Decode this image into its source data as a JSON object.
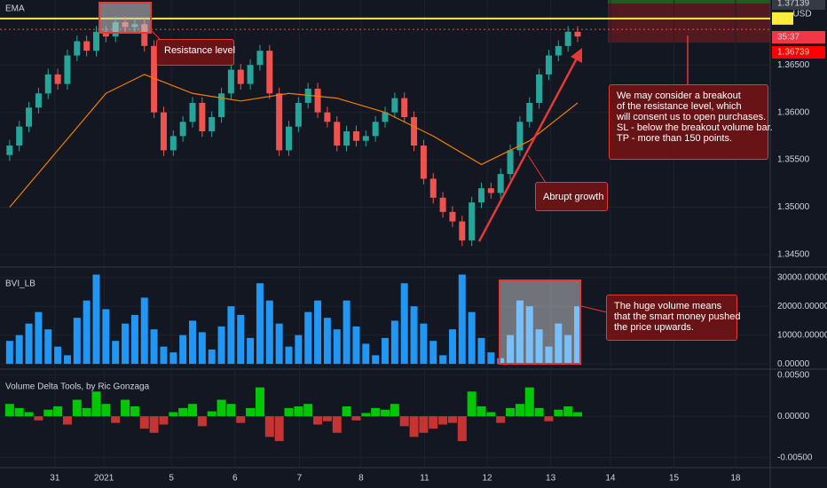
{
  "chart_data": [
    {
      "type": "candlestick",
      "legend": "EMA",
      "currency": "USD",
      "ylim": [
        1.34378,
        1.37185
      ],
      "yticks": [
        {
          "value": 1.345,
          "label": "1.34500"
        },
        {
          "value": 1.35,
          "label": "1.35000"
        },
        {
          "value": 1.355,
          "label": "1.35500"
        },
        {
          "value": 1.36,
          "label": "1.36000"
        },
        {
          "value": 1.365,
          "label": "1.36500"
        }
      ],
      "x": [
        1,
        2,
        3,
        4,
        5,
        6,
        7,
        8,
        9,
        10,
        11,
        12,
        13,
        14,
        15,
        16,
        17,
        18,
        19,
        20,
        21,
        22,
        23,
        24,
        25,
        26,
        27,
        28,
        29,
        30,
        31,
        32,
        33,
        34,
        35,
        36,
        37,
        38,
        39,
        40,
        41,
        42,
        43,
        44,
        45,
        46,
        47,
        48,
        49,
        50,
        51,
        52,
        53,
        54,
        55,
        56,
        57,
        58,
        59,
        60
      ],
      "open": [
        1.3555,
        1.3565,
        1.3585,
        1.3605,
        1.362,
        1.364,
        1.363,
        1.366,
        1.3675,
        1.3665,
        1.3685,
        1.368,
        1.3695,
        1.369,
        1.3693,
        1.367,
        1.36,
        1.356,
        1.3575,
        1.359,
        1.361,
        1.358,
        1.3595,
        1.362,
        1.3645,
        1.363,
        1.365,
        1.3665,
        1.362,
        1.356,
        1.3585,
        1.361,
        1.3625,
        1.36,
        1.359,
        1.3565,
        1.358,
        1.357,
        1.3575,
        1.359,
        1.36,
        1.3615,
        1.3595,
        1.3565,
        1.353,
        1.351,
        1.3495,
        1.3485,
        1.3465,
        1.3505,
        1.352,
        1.3515,
        1.3535,
        1.356,
        1.359,
        1.361,
        1.364,
        1.366,
        1.367,
        1.3685
      ],
      "high": [
        1.3571,
        1.3591,
        1.3611,
        1.3626,
        1.3646,
        1.3646,
        1.3666,
        1.3681,
        1.3681,
        1.3691,
        1.3691,
        1.3701,
        1.3701,
        1.3699,
        1.3699,
        1.3676,
        1.3606,
        1.3581,
        1.3596,
        1.3616,
        1.3616,
        1.3601,
        1.3626,
        1.3651,
        1.3651,
        1.3656,
        1.3671,
        1.3671,
        1.3626,
        1.3591,
        1.3616,
        1.3631,
        1.3631,
        1.3606,
        1.3596,
        1.3586,
        1.3586,
        1.3581,
        1.3596,
        1.3606,
        1.3621,
        1.3621,
        1.3601,
        1.3571,
        1.3536,
        1.3516,
        1.3501,
        1.3491,
        1.3511,
        1.3526,
        1.3526,
        1.3541,
        1.3566,
        1.3596,
        1.3616,
        1.3646,
        1.3666,
        1.3676,
        1.3691,
        1.3691
      ],
      "low": [
        1.3549,
        1.3559,
        1.3579,
        1.3599,
        1.3614,
        1.3624,
        1.3624,
        1.3654,
        1.3659,
        1.3659,
        1.3674,
        1.3674,
        1.3684,
        1.3684,
        1.3664,
        1.3594,
        1.3554,
        1.3554,
        1.3569,
        1.3584,
        1.3574,
        1.3574,
        1.3589,
        1.3614,
        1.3624,
        1.3624,
        1.3644,
        1.3614,
        1.3554,
        1.3554,
        1.3579,
        1.3604,
        1.3594,
        1.3584,
        1.3559,
        1.3559,
        1.3564,
        1.3564,
        1.3569,
        1.3584,
        1.3594,
        1.3589,
        1.3559,
        1.3524,
        1.3504,
        1.3489,
        1.3479,
        1.3459,
        1.3459,
        1.3499,
        1.3509,
        1.3509,
        1.3529,
        1.3554,
        1.3584,
        1.3604,
        1.3634,
        1.3654,
        1.3664,
        1.3674
      ],
      "close": [
        1.3565,
        1.3585,
        1.3605,
        1.362,
        1.364,
        1.363,
        1.366,
        1.3675,
        1.3665,
        1.3685,
        1.368,
        1.3695,
        1.369,
        1.3693,
        1.367,
        1.36,
        1.356,
        1.3575,
        1.359,
        1.361,
        1.358,
        1.3595,
        1.362,
        1.3645,
        1.363,
        1.365,
        1.3665,
        1.362,
        1.356,
        1.3585,
        1.361,
        1.3625,
        1.36,
        1.359,
        1.3565,
        1.358,
        1.357,
        1.3575,
        1.359,
        1.36,
        1.3615,
        1.3595,
        1.3565,
        1.353,
        1.351,
        1.3495,
        1.3485,
        1.3465,
        1.3505,
        1.352,
        1.3515,
        1.3535,
        1.356,
        1.359,
        1.361,
        1.364,
        1.366,
        1.367,
        1.3685,
        1.368
      ],
      "up_color": "#26a69a",
      "down_color": "#ef5350",
      "ema": {
        "color": "#f57c00",
        "x": [
          1,
          6,
          11,
          15,
          20,
          25,
          30,
          35,
          40,
          45,
          50,
          55,
          60
        ],
        "values": [
          1.35,
          1.356,
          1.362,
          1.364,
          1.362,
          1.3612,
          1.362,
          1.3615,
          1.36,
          1.3575,
          1.3545,
          1.357,
          1.361
        ]
      },
      "levels": [
        {
          "value": 1.3699,
          "color": "#ffeb3b"
        },
        {
          "value": 1.36875,
          "color": "#ef5350",
          "dash": true
        }
      ],
      "price_labels": [
        {
          "value": 1.37139,
          "label": "1.37139",
          "color": "#363a45"
        },
        {
          "label": "35:37",
          "color": "#f23645"
        },
        {
          "value": 1.36739,
          "label": "1.36739",
          "color": "#ff0000"
        }
      ],
      "annotations": [
        "Resistance level",
        "Abrupt growth"
      ],
      "note_lines": [
        "We may consider a breakout",
        "of the resistance level, which",
        "will consent us to open purchases.",
        "SL - below the breakout volume bar.",
        "TP - more than 150 points."
      ]
    },
    {
      "type": "bar",
      "title": "BVI_LB",
      "color": "#2196f3",
      "ylim": [
        -1500,
        33300
      ],
      "yticks": [
        {
          "value": 0,
          "label": "0.00000"
        },
        {
          "value": 10000,
          "label": "10000.00000"
        },
        {
          "value": 20000,
          "label": "20000.00000"
        },
        {
          "value": 30000,
          "label": "30000.00000"
        }
      ],
      "x": [
        1,
        2,
        3,
        4,
        5,
        6,
        7,
        8,
        9,
        10,
        11,
        12,
        13,
        14,
        15,
        16,
        17,
        18,
        19,
        20,
        21,
        22,
        23,
        24,
        25,
        26,
        27,
        28,
        29,
        30,
        31,
        32,
        33,
        34,
        35,
        36,
        37,
        38,
        39,
        40,
        41,
        42,
        43,
        44,
        45,
        46,
        47,
        48,
        49,
        50,
        51,
        52,
        53,
        54,
        55,
        56,
        57,
        58,
        59,
        60
      ],
      "values": [
        8000,
        10000,
        14000,
        18000,
        12000,
        6000,
        3000,
        16000,
        22000,
        31000,
        19000,
        8000,
        14000,
        17000,
        23000,
        12000,
        6000,
        4000,
        10000,
        15000,
        11000,
        5000,
        13000,
        20000,
        17000,
        9000,
        28000,
        22000,
        14000,
        6000,
        10000,
        18000,
        22000,
        16000,
        12000,
        22000,
        13000,
        7000,
        3000,
        9000,
        15000,
        28000,
        20000,
        14000,
        8000,
        3000,
        12000,
        31000,
        18000,
        9000,
        4000,
        2000,
        10000,
        22000,
        20000,
        12000,
        6000,
        14000,
        10000,
        20000
      ],
      "note_lines": [
        "The huge volume means",
        "that the smart money pushed",
        "the price upwards."
      ]
    },
    {
      "type": "delta",
      "title": "Volume Delta Tools, by Ric Gonzaga",
      "up_color": "#00e600",
      "down_color": "#e53935",
      "ylim": [
        -0.006,
        0.0055
      ],
      "yticks": [
        {
          "value": -0.005,
          "label": "-0.00500"
        },
        {
          "value": 0,
          "label": "0.00000"
        },
        {
          "value": 0.005,
          "label": "0.00500"
        }
      ],
      "xlim": [
        0,
        80
      ],
      "xticks": [
        {
          "value": 5.7,
          "label": "31"
        },
        {
          "value": 10.8,
          "label": "2021"
        },
        {
          "value": 17.8,
          "label": "5"
        },
        {
          "value": 24.4,
          "label": "6"
        },
        {
          "value": 31.1,
          "label": "7"
        },
        {
          "value": 37.5,
          "label": "8"
        },
        {
          "value": 44.1,
          "label": "11"
        },
        {
          "value": 50.6,
          "label": "12"
        },
        {
          "value": 57.2,
          "label": "13"
        },
        {
          "value": 63.4,
          "label": "14"
        },
        {
          "value": 70,
          "label": "15"
        },
        {
          "value": 76.4,
          "label": "18"
        }
      ],
      "x": [
        1,
        2,
        3,
        4,
        5,
        6,
        7,
        8,
        9,
        10,
        11,
        12,
        13,
        14,
        15,
        16,
        17,
        18,
        19,
        20,
        21,
        22,
        23,
        24,
        25,
        26,
        27,
        28,
        29,
        30,
        31,
        32,
        33,
        34,
        35,
        36,
        37,
        38,
        39,
        40,
        41,
        42,
        43,
        44,
        45,
        46,
        47,
        48,
        49,
        50,
        51,
        52,
        53,
        54,
        55,
        56,
        57,
        58,
        59,
        60
      ],
      "values": [
        0.0015,
        0.001,
        0.0005,
        -0.0005,
        0.0008,
        0.0012,
        -0.001,
        0.002,
        0.001,
        0.003,
        0.0015,
        -0.0008,
        0.002,
        0.0012,
        -0.0015,
        -0.002,
        -0.001,
        0.0005,
        0.001,
        0.0015,
        -0.0012,
        0.0006,
        0.002,
        0.0015,
        -0.0008,
        0.001,
        0.0035,
        -0.0025,
        -0.003,
        0.001,
        0.0012,
        0.0015,
        -0.001,
        -0.0006,
        -0.002,
        0.0012,
        -0.0005,
        0.0004,
        0.001,
        0.0008,
        0.0015,
        -0.0012,
        -0.0025,
        -0.002,
        -0.0015,
        -0.001,
        -0.0008,
        -0.003,
        0.003,
        0.0012,
        0.0005,
        -0.0008,
        0.001,
        0.0015,
        0.0035,
        0.001,
        -0.0006,
        0.0008,
        0.0012,
        0.0005
      ]
    }
  ]
}
